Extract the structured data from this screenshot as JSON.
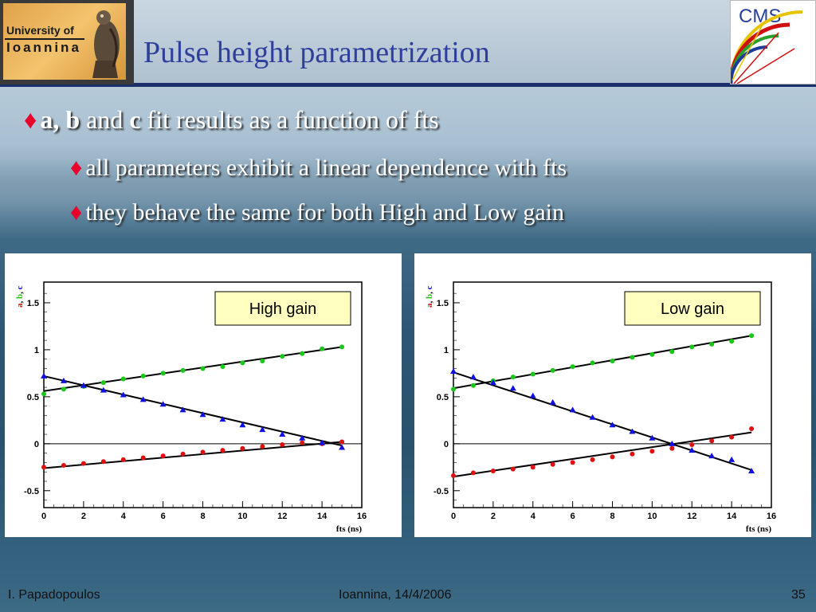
{
  "header": {
    "title": "Pulse height parametrization",
    "logo_left": {
      "line1": "University of",
      "line2": "Ioannina"
    },
    "logo_right": {
      "text": "CMS"
    }
  },
  "bullets": {
    "main": {
      "bold": "a, b",
      "mid": " and ",
      "bold2": "c",
      "rest": " fit results as a function of fts"
    },
    "sub": [
      "all parameters exhibit a linear dependence with fts",
      "they behave the same for both High and Low gain"
    ]
  },
  "colors": {
    "a": "#e01010",
    "b": "#18c818",
    "c": "#1010e0",
    "diamond": "#e8002a",
    "title": "#2e3f9c"
  },
  "chart_data": [
    {
      "type": "scatter",
      "title": "High gain",
      "xlabel": "fts (ns)",
      "ylabel_parts": [
        "a",
        "b",
        "c"
      ],
      "xlim": [
        0,
        16
      ],
      "ylim": [
        -0.68,
        1.72
      ],
      "xticks": [
        "0",
        "2",
        "4",
        "6",
        "8",
        "10",
        "12",
        "14",
        "16"
      ],
      "yticks": [
        "-0.5",
        "0",
        "0.5",
        "1",
        "1.5"
      ],
      "x": [
        0,
        1,
        2,
        3,
        4,
        5,
        6,
        7,
        8,
        9,
        10,
        11,
        12,
        13,
        14,
        15
      ],
      "series": [
        {
          "key": "a",
          "marker": "circle",
          "values": [
            -0.25,
            -0.23,
            -0.21,
            -0.19,
            -0.17,
            -0.15,
            -0.13,
            -0.11,
            -0.09,
            -0.07,
            -0.05,
            -0.03,
            -0.01,
            0.01,
            0.0,
            0.02
          ],
          "fit": [
            [
              0,
              -0.26
            ],
            [
              15,
              0.02
            ]
          ]
        },
        {
          "key": "b",
          "marker": "circle",
          "values": [
            0.53,
            0.58,
            0.61,
            0.65,
            0.69,
            0.72,
            0.75,
            0.78,
            0.8,
            0.82,
            0.86,
            0.88,
            0.93,
            0.96,
            1.01,
            1.03
          ],
          "fit": [
            [
              0,
              0.56
            ],
            [
              15,
              1.03
            ]
          ]
        },
        {
          "key": "c",
          "marker": "triangle",
          "values": [
            0.72,
            0.67,
            0.62,
            0.57,
            0.52,
            0.47,
            0.42,
            0.36,
            0.31,
            0.26,
            0.2,
            0.15,
            0.1,
            0.06,
            0.01,
            -0.04
          ],
          "fit": [
            [
              0,
              0.72
            ],
            [
              15,
              -0.02
            ]
          ]
        }
      ]
    },
    {
      "type": "scatter",
      "title": "Low gain",
      "xlabel": "fts (ns)",
      "ylabel_parts": [
        "a",
        "b",
        "c"
      ],
      "xlim": [
        0,
        16
      ],
      "ylim": [
        -0.68,
        1.72
      ],
      "xticks": [
        "0",
        "2",
        "4",
        "6",
        "8",
        "10",
        "12",
        "14",
        "16"
      ],
      "yticks": [
        "-0.5",
        "0",
        "0.5",
        "1",
        "1.5"
      ],
      "x": [
        0,
        1,
        2,
        3,
        4,
        5,
        6,
        7,
        8,
        9,
        10,
        11,
        12,
        13,
        14,
        15
      ],
      "series": [
        {
          "key": "a",
          "marker": "circle",
          "values": [
            -0.34,
            -0.31,
            -0.29,
            -0.27,
            -0.25,
            -0.22,
            -0.2,
            -0.17,
            -0.14,
            -0.11,
            -0.08,
            -0.05,
            -0.01,
            0.03,
            0.07,
            0.16
          ],
          "fit": [
            [
              0,
              -0.35
            ],
            [
              15,
              0.12
            ]
          ]
        },
        {
          "key": "b",
          "marker": "circle",
          "values": [
            0.58,
            0.62,
            0.67,
            0.71,
            0.74,
            0.78,
            0.82,
            0.86,
            0.88,
            0.92,
            0.95,
            0.98,
            1.03,
            1.06,
            1.09,
            1.15
          ],
          "fit": [
            [
              0,
              0.59
            ],
            [
              15,
              1.15
            ]
          ]
        },
        {
          "key": "c",
          "marker": "triangle",
          "values": [
            0.77,
            0.71,
            0.65,
            0.59,
            0.51,
            0.44,
            0.36,
            0.28,
            0.2,
            0.13,
            0.06,
            0.0,
            -0.07,
            -0.13,
            -0.17,
            -0.29
          ],
          "fit": [
            [
              0,
              0.76
            ],
            [
              15,
              -0.28
            ]
          ]
        }
      ]
    }
  ],
  "footer": {
    "author": "I. Papadopoulos",
    "place_date": "Ioannina, 14/4/2006",
    "page": "35"
  }
}
